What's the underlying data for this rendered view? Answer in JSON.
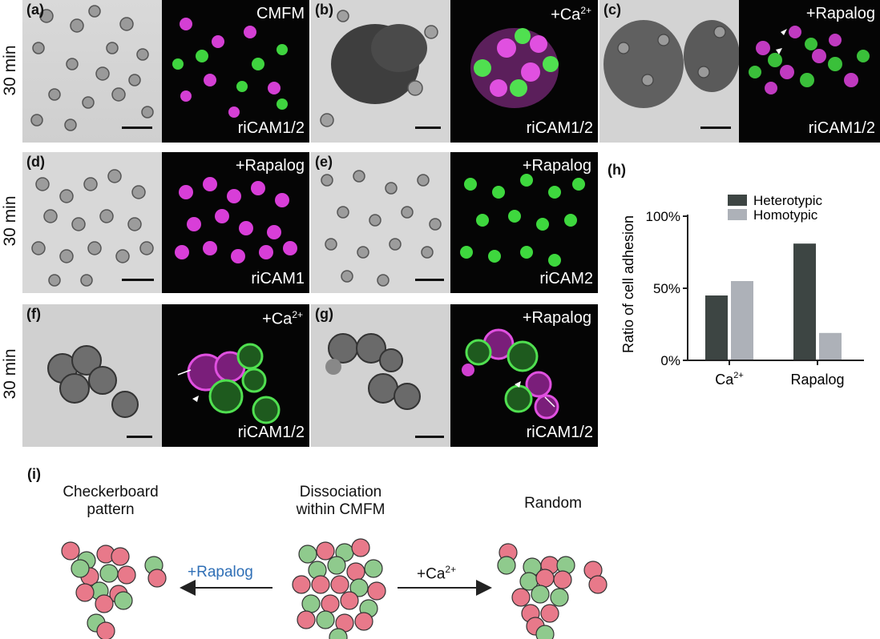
{
  "row_label": "30 min",
  "panels": [
    {
      "label": "(a)",
      "top_text": "CMFM",
      "bottom_text": "riCAM1/2"
    },
    {
      "label": "(b)",
      "top_text": "+Ca",
      "top_sup": "2+",
      "bottom_text": "riCAM1/2"
    },
    {
      "label": "(c)",
      "top_text": "+Rapalog",
      "bottom_text": "riCAM1/2"
    },
    {
      "label": "(d)",
      "top_text": "+Rapalog",
      "bottom_text": "riCAM1"
    },
    {
      "label": "(e)",
      "top_text": "+Rapalog",
      "bottom_text": "riCAM2"
    },
    {
      "label": "(f)",
      "top_text": "+Ca",
      "top_sup": "2+",
      "bottom_text": "riCAM1/2"
    },
    {
      "label": "(g)",
      "top_text": "+Rapalog",
      "bottom_text": "riCAM1/2"
    }
  ],
  "chart_data": {
    "type": "bar",
    "label": "(h)",
    "categories": [
      "Ca2+",
      "Rapalog"
    ],
    "category_display": [
      {
        "base": "Ca",
        "sup": "2+"
      },
      {
        "base": "Rapalog",
        "sup": ""
      }
    ],
    "series": [
      {
        "name": "Heterotypic",
        "values": [
          45,
          81
        ],
        "color": "#3d4543"
      },
      {
        "name": "Homotypic",
        "values": [
          55,
          19
        ],
        "color": "#adb1b8"
      }
    ],
    "ylabel": "Ratio of cell adhesion",
    "yticks": [
      "0%",
      "50%",
      "100%"
    ],
    "ylim": [
      0,
      100
    ],
    "legend": "top"
  },
  "schematic": {
    "label": "(i)",
    "left_title_1": "Checkerboard",
    "left_title_2": "pattern",
    "center_title_1": "Dissociation",
    "center_title_2": "within CMFM",
    "right_title": "Random",
    "left_arrow_label": "+Rapalog",
    "right_arrow_label": "+Ca",
    "right_arrow_sup": "2+",
    "cell_colors": {
      "pink": "#e8798a",
      "green": "#8fca8d",
      "rapalog_text": "#2f6fb6"
    }
  }
}
